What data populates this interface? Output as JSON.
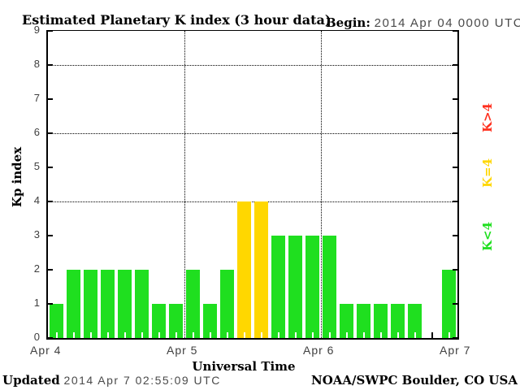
{
  "header": {
    "title": "Estimated Planetary K index (3 hour data)",
    "begin_label": "Begin:",
    "begin_value": "2014 Apr 04 0000 UTC"
  },
  "axes": {
    "y_title": "Kp index",
    "x_title": "Universal Time"
  },
  "legend": [
    {
      "label": "K>4",
      "color": "#ff2f1e"
    },
    {
      "label": "K=4",
      "color": "#ffd700"
    },
    {
      "label": "K<4",
      "color": "#1fdf1f"
    }
  ],
  "footer": {
    "updated_label": "Updated",
    "updated_value": "2014 Apr  7 02:55:09 UTC",
    "source": "NOAA/SWPC Boulder, CO USA"
  },
  "chart_data": {
    "type": "bar",
    "title": "Estimated Planetary K index (3 hour data)",
    "xlabel": "Universal Time",
    "ylabel": "Kp index",
    "ylim": [
      0,
      9
    ],
    "y_ticks": [
      0,
      1,
      2,
      3,
      4,
      5,
      6,
      7,
      8,
      9
    ],
    "grid_y": [
      4,
      6,
      8
    ],
    "grid_on": true,
    "x_tick_labels": [
      "Apr 4",
      "Apr 5",
      "Apr 6",
      "Apr 7"
    ],
    "slots_per_day": 8,
    "slot_hours": 3,
    "begin": "2014 Apr 04 0000 UTC",
    "values": [
      1,
      2,
      2,
      2,
      2,
      2,
      1,
      1,
      2,
      1,
      2,
      4,
      4,
      3,
      3,
      3,
      3,
      1,
      1,
      1,
      1,
      1,
      null,
      2
    ],
    "color_rule": {
      "k_lt_4": "#1fdf1f",
      "k_eq_4": "#ffd700",
      "k_gt_4": "#ff2f1e"
    },
    "legend_position": "right"
  }
}
